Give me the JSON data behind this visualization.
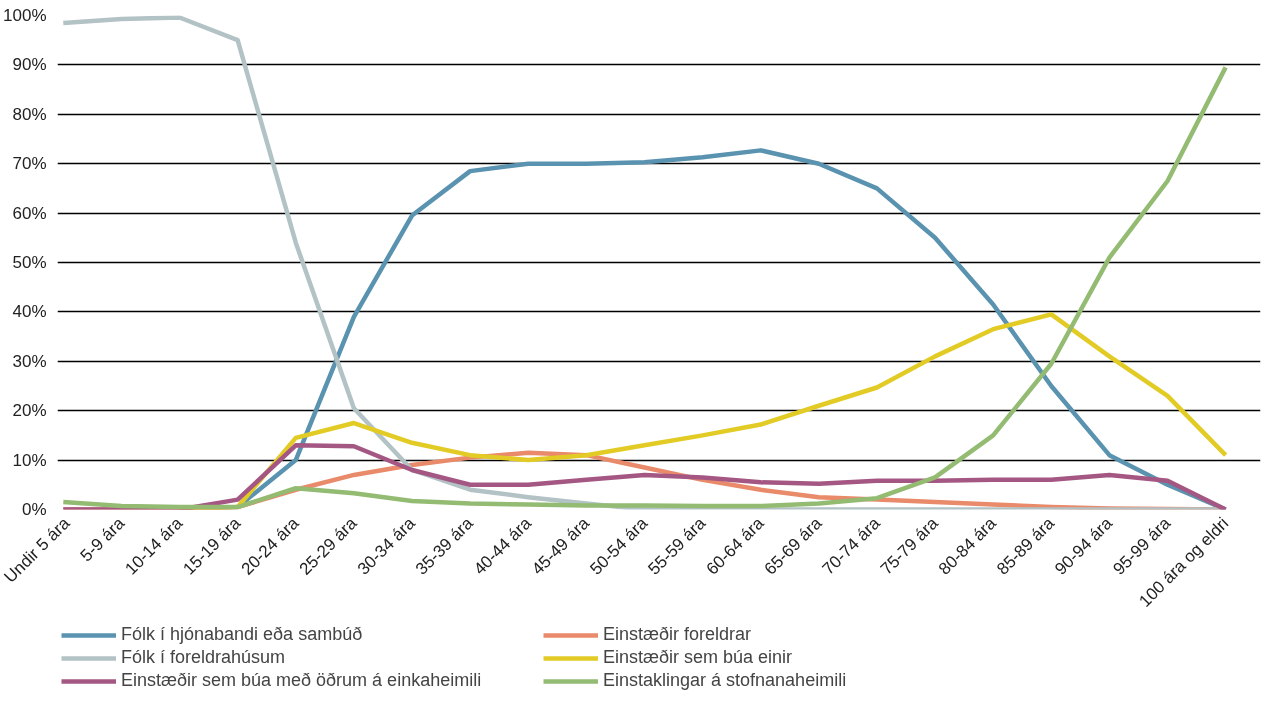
{
  "chart_data": {
    "type": "line",
    "categories": [
      "Undir 5 ára",
      "5-9 ára",
      "10-14 ára",
      "15-19 ára",
      "20-24 ára",
      "25-29 ára",
      "30-34 ára",
      "35-39 ára",
      "40-44 ára",
      "45-49 ára",
      "50-54 ára",
      "55-59 ára",
      "60-64 ára",
      "65-69 ára",
      "70-74 ára",
      "75-79 ára",
      "80-84 ára",
      "85-89 ára",
      "90-94 ára",
      "95-99 ára",
      "100 ára og eldri"
    ],
    "series": [
      {
        "name": "Fólk í hjónabandi eða sambúð",
        "color": "#5a93b0",
        "values": [
          null,
          null,
          0,
          0.5,
          10,
          39,
          59.5,
          68.5,
          70,
          70,
          70.3,
          71.3,
          72.7,
          70,
          65,
          55,
          41.5,
          25,
          11,
          5,
          0
        ]
      },
      {
        "name": "Einstæðir foreldrar",
        "color": "#e98a6a",
        "values": [
          0,
          0,
          0,
          0.5,
          4,
          7,
          9,
          10.5,
          11.5,
          11,
          8.5,
          6,
          4,
          2.5,
          2,
          1.5,
          1,
          0.5,
          0.2,
          0.1,
          0
        ]
      },
      {
        "name": "Fólk í foreldrahúsum",
        "color": "#b3c2c5",
        "values": [
          98.5,
          99.3,
          99.6,
          95,
          54,
          20.5,
          8,
          4,
          2.5,
          1.2,
          0,
          0,
          0,
          0,
          0,
          0,
          0,
          0,
          0,
          0,
          0
        ]
      },
      {
        "name": "Einstæðir sem búa einir",
        "color": "#e3cb26",
        "values": [
          null,
          null,
          0,
          0.5,
          14.5,
          17.5,
          13.5,
          11,
          10,
          11,
          13,
          15,
          17.2,
          21,
          24.7,
          31,
          36.5,
          39.5,
          31,
          23,
          11
        ]
      },
      {
        "name": "Einstæðir sem búa með öðrum á einkaheimili",
        "color": "#a45783",
        "values": [
          0,
          0,
          0,
          2,
          13,
          12.8,
          8,
          5,
          5,
          6,
          7,
          6.5,
          5.5,
          5.2,
          5.8,
          5.8,
          6,
          6,
          7,
          5.8,
          0
        ]
      },
      {
        "name": "Einstaklingar á stofnanaheimili",
        "color": "#93bb72",
        "values": [
          1.5,
          0.7,
          0.5,
          0.5,
          4.3,
          3.3,
          1.7,
          1.2,
          1,
          0.8,
          0.8,
          0.7,
          0.7,
          1.2,
          2.3,
          6.5,
          15,
          29.5,
          51,
          66.5,
          89.5
        ]
      }
    ],
    "ylim": [
      0,
      100
    ],
    "yticks": [
      {
        "value": 0,
        "label": "0%"
      },
      {
        "value": 10,
        "label": "10%"
      },
      {
        "value": 20,
        "label": "20%"
      },
      {
        "value": 30,
        "label": "30%"
      },
      {
        "value": 40,
        "label": "40%"
      },
      {
        "value": 50,
        "label": "50%"
      },
      {
        "value": 60,
        "label": "60%"
      },
      {
        "value": 70,
        "label": "70%"
      },
      {
        "value": 80,
        "label": "80%"
      },
      {
        "value": 90,
        "label": "90%"
      },
      {
        "value": 100,
        "label": "100%"
      }
    ],
    "grid": "y",
    "legend": "bottom",
    "line_style": "solid"
  }
}
